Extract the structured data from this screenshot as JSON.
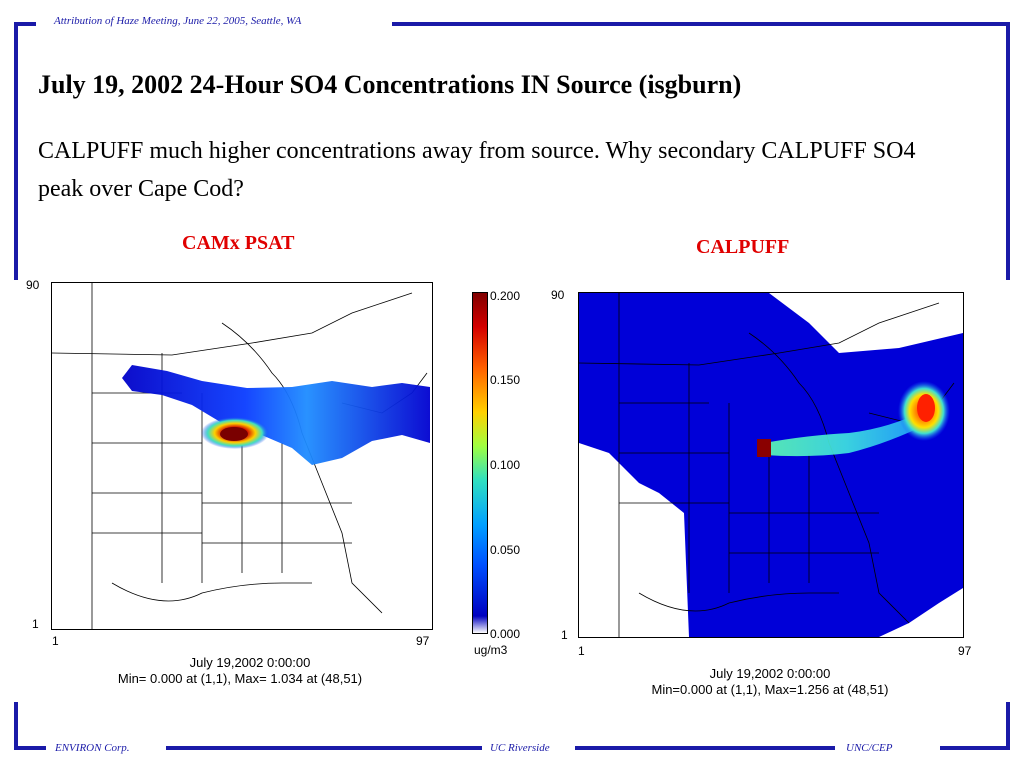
{
  "header": {
    "text": "Attribution of Haze Meeting, June 22, 2005, Seattle, WA"
  },
  "title": "July 19, 2002 24-Hour SO4 Concentrations IN Source (isgburn)",
  "subtitle": "CALPUFF much higher concentrations away from source.  Why secondary CALPUFF SO4 peak over Cape Cod?",
  "left_panel": {
    "label": "CAMx PSAT",
    "y_top": "90",
    "y_bottom": "1",
    "x_left": "1",
    "x_right": "97",
    "date": "July 19,2002 0:00:00",
    "stats": "Min=   0.000 at (1,1), Max=   1.034 at (48,51)"
  },
  "right_panel": {
    "label": "CALPUFF",
    "y_top": "90",
    "y_bottom": "1",
    "x_left": "1",
    "x_right": "97",
    "date": "July 19,2002 0:00:00",
    "stats": "Min=0.000 at (1,1), Max=1.256 at (48,51)"
  },
  "colorbar": {
    "ticks": [
      "0.200",
      "0.150",
      "0.100",
      "0.050",
      "0.000"
    ],
    "unit": "ug/m3"
  },
  "footer": {
    "left": "ENVIRON Corp.",
    "center": "UC Riverside",
    "right": "UNC/CEP"
  },
  "colors": {
    "frame": "#1a1aa8",
    "panel_title": "#e00000"
  }
}
